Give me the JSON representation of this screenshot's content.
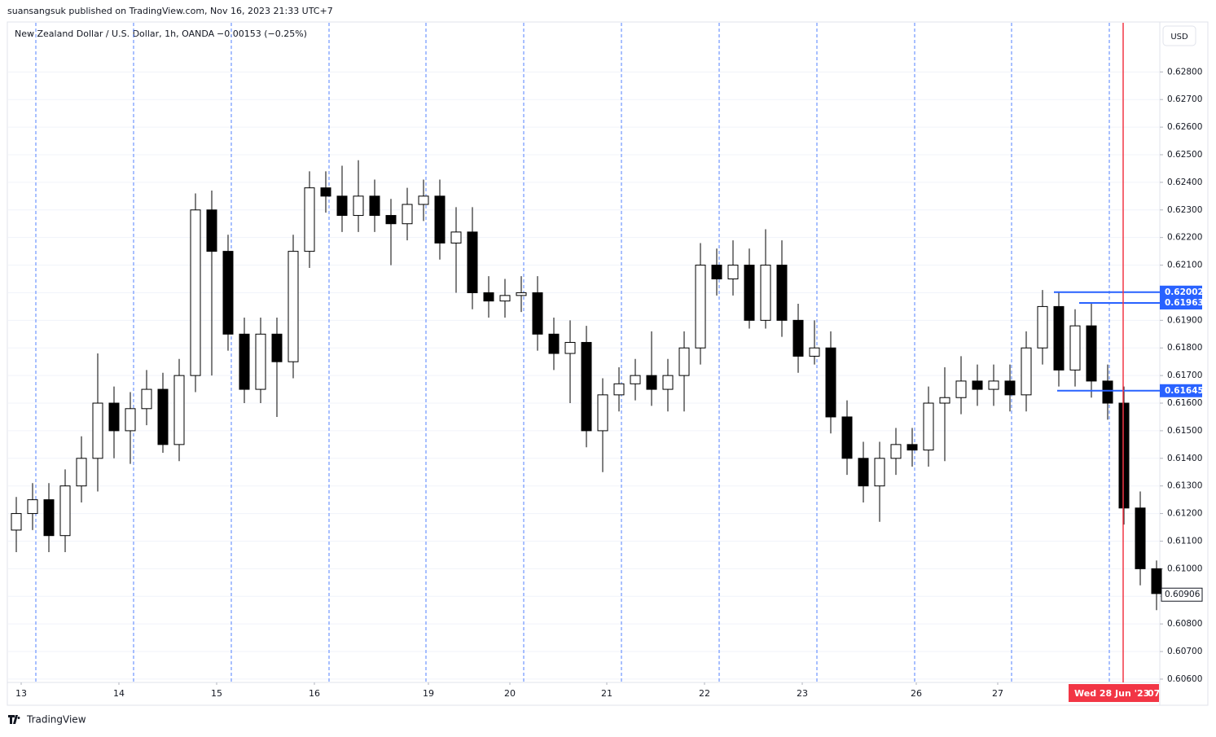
{
  "header": {
    "publisher": "suansangsuk published on TradingView.com, Nov 16, 2023 21:33 UTC+7",
    "symbol": "New Zealand Dollar / U.S. Dollar, 1h, OANDA",
    "change": "−0.00153 (−0.25%)",
    "currency_button": "USD"
  },
  "footer": {
    "brand": "TradingView"
  },
  "chart_data": {
    "type": "candlestick",
    "x": [
      0,
      4,
      8,
      12,
      16,
      20,
      24,
      28,
      32,
      36,
      40,
      44,
      48,
      52,
      56,
      60,
      64,
      68,
      72,
      76,
      80,
      84,
      88,
      92,
      96,
      100,
      104,
      108,
      112,
      116,
      120,
      124,
      128,
      132,
      136,
      140,
      144,
      148,
      152,
      156,
      160,
      164,
      168,
      172,
      176,
      180,
      184,
      188,
      192,
      196,
      200,
      204,
      208,
      212,
      216,
      220,
      224,
      228,
      232,
      236,
      240,
      244,
      248,
      252,
      256,
      260,
      264,
      268,
      272,
      276,
      280
    ],
    "open": [
      0.6114,
      0.612,
      0.6125,
      0.6112,
      0.613,
      0.614,
      0.616,
      0.615,
      0.6158,
      0.6165,
      0.6145,
      0.617,
      0.623,
      0.6215,
      0.6185,
      0.6165,
      0.6185,
      0.6175,
      0.6215,
      0.6238,
      0.6235,
      0.6228,
      0.6235,
      0.6228,
      0.6225,
      0.6232,
      0.6235,
      0.6218,
      0.6222,
      0.62,
      0.6197,
      0.6199,
      0.62,
      0.6185,
      0.6178,
      0.6182,
      0.615,
      0.6163,
      0.6167,
      0.617,
      0.6165,
      0.617,
      0.618,
      0.621,
      0.6205,
      0.621,
      0.619,
      0.621,
      0.619,
      0.6177,
      0.618,
      0.6155,
      0.614,
      0.613,
      0.614,
      0.6145,
      0.6143,
      0.616,
      0.6162,
      0.6168,
      0.6165,
      0.6168,
      0.6163,
      0.618,
      0.6195,
      0.6172,
      0.6188,
      0.6168,
      0.616,
      0.6122,
      0.61
    ],
    "high": [
      0.6126,
      0.6131,
      0.6131,
      0.6136,
      0.6148,
      0.6178,
      0.6166,
      0.6164,
      0.6172,
      0.6171,
      0.6176,
      0.6236,
      0.6237,
      0.6221,
      0.6191,
      0.6191,
      0.6191,
      0.6221,
      0.6244,
      0.6244,
      0.6246,
      0.6248,
      0.6241,
      0.6234,
      0.6238,
      0.6241,
      0.6241,
      0.6231,
      0.6231,
      0.6206,
      0.6205,
      0.6206,
      0.6206,
      0.6191,
      0.619,
      0.6188,
      0.6169,
      0.6173,
      0.6176,
      0.6186,
      0.6176,
      0.6186,
      0.6218,
      0.6216,
      0.6219,
      0.6216,
      0.6223,
      0.6219,
      0.6196,
      0.619,
      0.6186,
      0.6161,
      0.6146,
      0.6146,
      0.6151,
      0.6151,
      0.6166,
      0.6173,
      0.6177,
      0.6174,
      0.6174,
      0.6174,
      0.6186,
      0.6201,
      0.62,
      0.6194,
      0.6196,
      0.6174,
      0.6166,
      0.6128,
      0.6103
    ],
    "low": [
      0.6106,
      0.6114,
      0.6106,
      0.6106,
      0.6124,
      0.6128,
      0.614,
      0.6138,
      0.6152,
      0.6142,
      0.6139,
      0.6164,
      0.617,
      0.6179,
      0.616,
      0.616,
      0.6155,
      0.6169,
      0.6209,
      0.6229,
      0.6222,
      0.6222,
      0.6222,
      0.621,
      0.6219,
      0.6226,
      0.6212,
      0.62,
      0.6194,
      0.6191,
      0.6191,
      0.6193,
      0.6179,
      0.6172,
      0.616,
      0.6144,
      0.6135,
      0.6157,
      0.6161,
      0.6159,
      0.6157,
      0.6157,
      0.6174,
      0.6199,
      0.6199,
      0.6187,
      0.6187,
      0.6184,
      0.6171,
      0.6174,
      0.6149,
      0.6134,
      0.6124,
      0.6117,
      0.6134,
      0.6137,
      0.6137,
      0.6139,
      0.6156,
      0.6159,
      0.6159,
      0.6157,
      0.6157,
      0.6174,
      0.6166,
      0.6166,
      0.6162,
      0.6154,
      0.6116,
      0.6094,
      0.6085
    ],
    "close": [
      0.612,
      0.6125,
      0.6112,
      0.613,
      0.614,
      0.616,
      0.615,
      0.6158,
      0.6165,
      0.6145,
      0.617,
      0.623,
      0.6215,
      0.6185,
      0.6165,
      0.6185,
      0.6175,
      0.6215,
      0.6238,
      0.6235,
      0.6228,
      0.6235,
      0.6228,
      0.6225,
      0.6232,
      0.6235,
      0.6218,
      0.6222,
      0.62,
      0.6197,
      0.6199,
      0.62,
      0.6185,
      0.6178,
      0.6182,
      0.615,
      0.6163,
      0.6167,
      0.617,
      0.6165,
      0.617,
      0.618,
      0.621,
      0.6205,
      0.621,
      0.619,
      0.621,
      0.619,
      0.6177,
      0.618,
      0.6155,
      0.614,
      0.613,
      0.614,
      0.6145,
      0.6143,
      0.616,
      0.6162,
      0.6168,
      0.6165,
      0.6168,
      0.6163,
      0.618,
      0.6195,
      0.6172,
      0.6188,
      0.6168,
      0.616,
      0.6122,
      0.61,
      0.6091
    ],
    "up_color": "#ffffff",
    "down_color": "#000000",
    "wick_color": "#000000",
    "xlim": [
      0,
      282.8
    ],
    "xticks": [
      {
        "value": 3.2,
        "label": "13"
      },
      {
        "value": 27.2,
        "label": "14"
      },
      {
        "value": 51.2,
        "label": "15"
      },
      {
        "value": 75.2,
        "label": "16"
      },
      {
        "value": 103.2,
        "label": "19"
      },
      {
        "value": 123.2,
        "label": "20"
      },
      {
        "value": 147,
        "label": "21"
      },
      {
        "value": 171,
        "label": "22"
      },
      {
        "value": 195,
        "label": "23"
      },
      {
        "value": 223,
        "label": "26"
      },
      {
        "value": 243,
        "label": "27"
      }
    ],
    "ylim": [
      0.60588,
      0.62978
    ],
    "yticks": [
      {
        "value": 0.606,
        "label": "0.60600"
      },
      {
        "value": 0.607,
        "label": "0.60700"
      },
      {
        "value": 0.608,
        "label": "0.60800"
      },
      {
        "value": 0.609,
        "label": "0.60900"
      },
      {
        "value": 0.61,
        "label": "0.61000"
      },
      {
        "value": 0.611,
        "label": "0.61100"
      },
      {
        "value": 0.612,
        "label": "0.61200"
      },
      {
        "value": 0.613,
        "label": "0.61300"
      },
      {
        "value": 0.614,
        "label": "0.61400"
      },
      {
        "value": 0.615,
        "label": "0.61500"
      },
      {
        "value": 0.616,
        "label": "0.61600"
      },
      {
        "value": 0.617,
        "label": "0.61700"
      },
      {
        "value": 0.618,
        "label": "0.61800"
      },
      {
        "value": 0.619,
        "label": "0.61900"
      },
      {
        "value": 0.62,
        "label": "0.62000"
      },
      {
        "value": 0.621,
        "label": "0.62100"
      },
      {
        "value": 0.622,
        "label": "0.62200"
      },
      {
        "value": 0.623,
        "label": "0.62300"
      },
      {
        "value": 0.624,
        "label": "0.62400"
      },
      {
        "value": 0.625,
        "label": "0.62500"
      },
      {
        "value": 0.626,
        "label": "0.62600"
      },
      {
        "value": 0.627,
        "label": "0.62700"
      },
      {
        "value": 0.628,
        "label": "0.62800"
      }
    ],
    "hidden_tick_labels": [
      0.609,
      0.62
    ],
    "grid": true,
    "grid_color": "#f0f3fa",
    "session_breaks": [
      6.8,
      30.8,
      54.8,
      78.8,
      102.6,
      126.6,
      150.6,
      174.6,
      198.6,
      222.6,
      246.4,
      270.4
    ],
    "session_color": "#2962ff",
    "levels": [
      {
        "price": 0.62002,
        "start": 256.8
      },
      {
        "price": 0.61963,
        "start": 263
      },
      {
        "price": 0.61645,
        "start": 257.6
      }
    ],
    "level_color": "#2962ff",
    "last_price": 0.60906,
    "crosshair": {
      "x": 273.8,
      "date_label": "Wed 28 Jun '23",
      "hour_label": "07",
      "color": "#f23645"
    }
  }
}
